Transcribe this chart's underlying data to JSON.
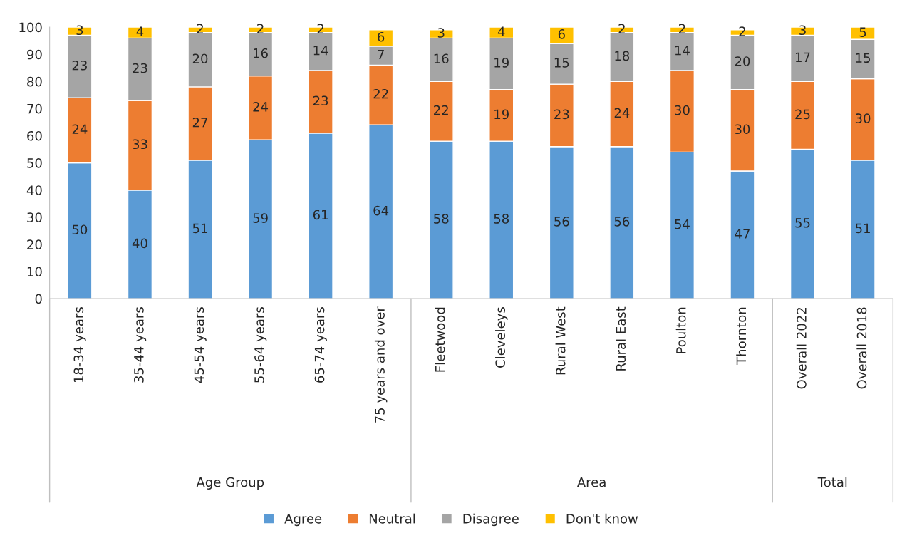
{
  "chart_data": {
    "type": "bar",
    "stacked": true,
    "categories": [
      "18-34 years",
      "35-44 years",
      "45-54 years",
      "55-64 years",
      "65-74 years",
      "75 years and over",
      "Fleetwood",
      "Cleveleys",
      "Rural West",
      "Rural East",
      "Poulton",
      "Thornton",
      "Overall 2022",
      "Overall 2018"
    ],
    "series": [
      {
        "name": "Agree",
        "color": "#5b9bd5",
        "values": [
          50,
          40,
          51,
          58.5,
          61,
          64,
          58,
          58,
          56,
          56,
          54,
          47,
          55,
          51
        ],
        "value_labels": [
          "50",
          "40",
          "51",
          "59",
          "61",
          "64",
          "58",
          "58",
          "56",
          "56",
          "54",
          "47",
          "55",
          "51"
        ]
      },
      {
        "name": "Neutral",
        "color": "#ed7d31",
        "values": [
          24,
          33,
          27,
          23.5,
          23,
          22,
          22,
          19,
          23,
          24,
          30,
          30,
          25,
          30
        ],
        "value_labels": [
          "24",
          "33",
          "27",
          "24",
          "23",
          "22",
          "22",
          "19",
          "23",
          "24",
          "30",
          "30",
          "25",
          "30"
        ]
      },
      {
        "name": "Disagree",
        "color": "#a5a5a5",
        "values": [
          23,
          23,
          20,
          16,
          14,
          7,
          16,
          19,
          15,
          18,
          14,
          20,
          17,
          14.5
        ],
        "value_labels": [
          "23",
          "23",
          "20",
          "16",
          "14",
          "7",
          "16",
          "19",
          "15",
          "18",
          "14",
          "20",
          "17",
          "15"
        ]
      },
      {
        "name": "Don't know",
        "color": "#ffc000",
        "values": [
          3,
          4,
          2,
          2,
          2,
          6,
          3,
          4,
          6,
          2,
          2,
          2,
          3,
          4.5
        ],
        "value_labels": [
          "3",
          "4",
          "2",
          "2",
          "2",
          "6",
          "3",
          "4",
          "6",
          "2",
          "2",
          "2",
          "3",
          "5"
        ]
      }
    ],
    "ylim": [
      0,
      100
    ],
    "yticks": [
      0,
      10,
      20,
      30,
      40,
      50,
      60,
      70,
      80,
      90,
      100
    ],
    "annotations": [
      "Age Group",
      "Area",
      "Total"
    ],
    "legend": "bottom",
    "grid": false
  }
}
